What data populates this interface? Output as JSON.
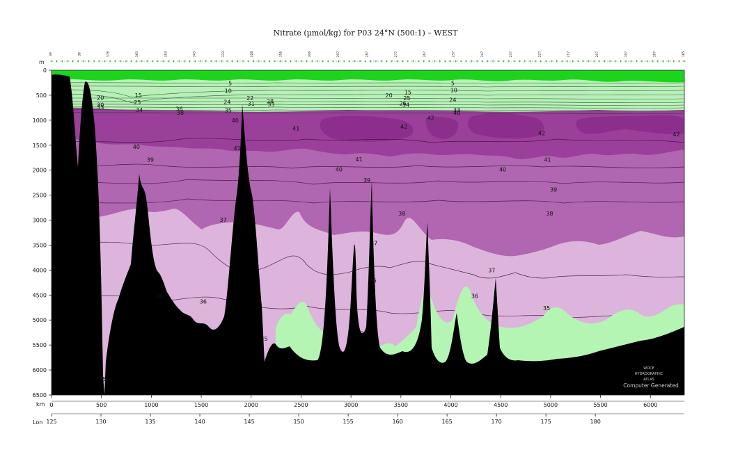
{
  "title": "Nitrate (µmol/kg) for P03 24°N (500:1) – WEST",
  "axes": {
    "depth_unit": "m",
    "distance_unit": "km",
    "longitude_label": "Lon"
  },
  "colors": {
    "surface_green": "#1cd41c",
    "band_light_purple": "#ddb4dc",
    "band_mid_purple": "#b066b0",
    "band_dark_purple": "#8c2f8c",
    "deep_light_green": "#b4f5b4",
    "topography": "#000000"
  },
  "watermark": {
    "line1": "WOCE",
    "line2": "HYDROGRAPHIC",
    "line3": "ATLAS",
    "line4": "Computer Generated"
  },
  "station_numbers": [
    "39",
    "38",
    "376",
    "363",
    "353",
    "343",
    "333",
    "32B",
    "316",
    "306",
    "297",
    "287",
    "277",
    "267",
    "257",
    "247",
    "237",
    "227",
    "217",
    "207",
    "197",
    "187",
    "185"
  ],
  "chart_data": {
    "type": "section contour",
    "title": "Nitrate (µmol/kg) for P03 24°N (500:1) – WEST",
    "variable": "Nitrate",
    "unit": "µmol/kg",
    "y_axis": {
      "label": "m",
      "range": [
        0,
        6500
      ],
      "inverted": true,
      "ticks": [
        0,
        500,
        1000,
        1500,
        2000,
        2500,
        3000,
        3500,
        4000,
        4500,
        5000,
        5500,
        6000,
        6500
      ]
    },
    "x_axis": {
      "label": "km",
      "range": [
        0,
        6340
      ],
      "ticks": [
        0,
        500,
        1000,
        1500,
        2000,
        2500,
        3000,
        3500,
        4000,
        4500,
        5000,
        5500,
        6000
      ]
    },
    "lon_axis": {
      "label": "Lon",
      "range": [
        125,
        189
      ],
      "ticks": [
        125,
        130,
        135,
        140,
        145,
        150,
        155,
        160,
        165,
        170,
        175,
        180
      ]
    },
    "contour_levels": [
      5,
      10,
      15,
      20,
      24,
      25,
      26,
      28,
      30,
      31,
      32,
      33,
      34,
      35,
      36,
      37,
      38,
      39,
      40,
      41,
      42
    ],
    "contour_labels": [
      {
        "text": "5",
        "x": 1790,
        "y": 260
      },
      {
        "text": "10",
        "x": 1770,
        "y": 410
      },
      {
        "text": "15",
        "x": 870,
        "y": 500
      },
      {
        "text": "20",
        "x": 490,
        "y": 550
      },
      {
        "text": "25",
        "x": 860,
        "y": 640
      },
      {
        "text": "30",
        "x": 490,
        "y": 690
      },
      {
        "text": "33",
        "x": 490,
        "y": 740
      },
      {
        "text": "34",
        "x": 880,
        "y": 790
      },
      {
        "text": "36",
        "x": 1280,
        "y": 770
      },
      {
        "text": "38",
        "x": 1290,
        "y": 850
      },
      {
        "text": "24",
        "x": 1760,
        "y": 630
      },
      {
        "text": "35",
        "x": 1770,
        "y": 800
      },
      {
        "text": "22",
        "x": 1990,
        "y": 560
      },
      {
        "text": "31",
        "x": 2000,
        "y": 670
      },
      {
        "text": "28",
        "x": 2190,
        "y": 620
      },
      {
        "text": "33",
        "x": 2200,
        "y": 680
      },
      {
        "text": "40",
        "x": 1840,
        "y": 1000
      },
      {
        "text": "41",
        "x": 2450,
        "y": 1160
      },
      {
        "text": "20",
        "x": 3380,
        "y": 500
      },
      {
        "text": "15",
        "x": 3570,
        "y": 440
      },
      {
        "text": "25",
        "x": 3560,
        "y": 560
      },
      {
        "text": "26",
        "x": 3520,
        "y": 660
      },
      {
        "text": "34",
        "x": 3550,
        "y": 690
      },
      {
        "text": "5",
        "x": 4020,
        "y": 260
      },
      {
        "text": "10",
        "x": 4030,
        "y": 400
      },
      {
        "text": "24",
        "x": 4020,
        "y": 590
      },
      {
        "text": "33",
        "x": 4060,
        "y": 790
      },
      {
        "text": "40",
        "x": 4060,
        "y": 850
      },
      {
        "text": "42",
        "x": 3530,
        "y": 1130
      },
      {
        "text": "42",
        "x": 3800,
        "y": 950
      },
      {
        "text": "42",
        "x": 4910,
        "y": 1260
      },
      {
        "text": "42",
        "x": 6260,
        "y": 1280
      },
      {
        "text": "40",
        "x": 850,
        "y": 1530
      },
      {
        "text": "39",
        "x": 990,
        "y": 1790
      },
      {
        "text": "41",
        "x": 1860,
        "y": 1560
      },
      {
        "text": "40",
        "x": 2880,
        "y": 1980
      },
      {
        "text": "41",
        "x": 3080,
        "y": 1780
      },
      {
        "text": "39",
        "x": 3160,
        "y": 2200
      },
      {
        "text": "40",
        "x": 4520,
        "y": 1980
      },
      {
        "text": "41",
        "x": 4970,
        "y": 1790
      },
      {
        "text": "39",
        "x": 5030,
        "y": 2390
      },
      {
        "text": "38",
        "x": 3510,
        "y": 2870
      },
      {
        "text": "38",
        "x": 4990,
        "y": 2870
      },
      {
        "text": "37",
        "x": 1720,
        "y": 2990
      },
      {
        "text": "37",
        "x": 3230,
        "y": 3460
      },
      {
        "text": "37",
        "x": 4410,
        "y": 4000
      },
      {
        "text": "36",
        "x": 1080,
        "y": 4500
      },
      {
        "text": "36",
        "x": 1520,
        "y": 4630
      },
      {
        "text": "36",
        "x": 3220,
        "y": 4210
      },
      {
        "text": "36",
        "x": 4240,
        "y": 4520
      },
      {
        "text": "35",
        "x": 4960,
        "y": 4760
      },
      {
        "text": "35",
        "x": 3130,
        "y": 5270
      },
      {
        "text": "35",
        "x": 2130,
        "y": 5370
      },
      {
        "text": "35",
        "x": 510,
        "y": 6180
      }
    ],
    "bands": [
      {
        "range": "0–15",
        "color": "#1cd41c"
      },
      {
        "range": "15–35",
        "color": "#b9f0b9"
      },
      {
        "range": "35–38",
        "color": "#ddb4dc"
      },
      {
        "range": "38–41",
        "color": "#b066b0"
      },
      {
        "range": "41–42",
        "color": "#9a3f9a"
      },
      {
        "range": ">42",
        "color": "#8c2f8c"
      },
      {
        "range": "<35 (deep)",
        "color": "#b4f5b4"
      }
    ]
  }
}
